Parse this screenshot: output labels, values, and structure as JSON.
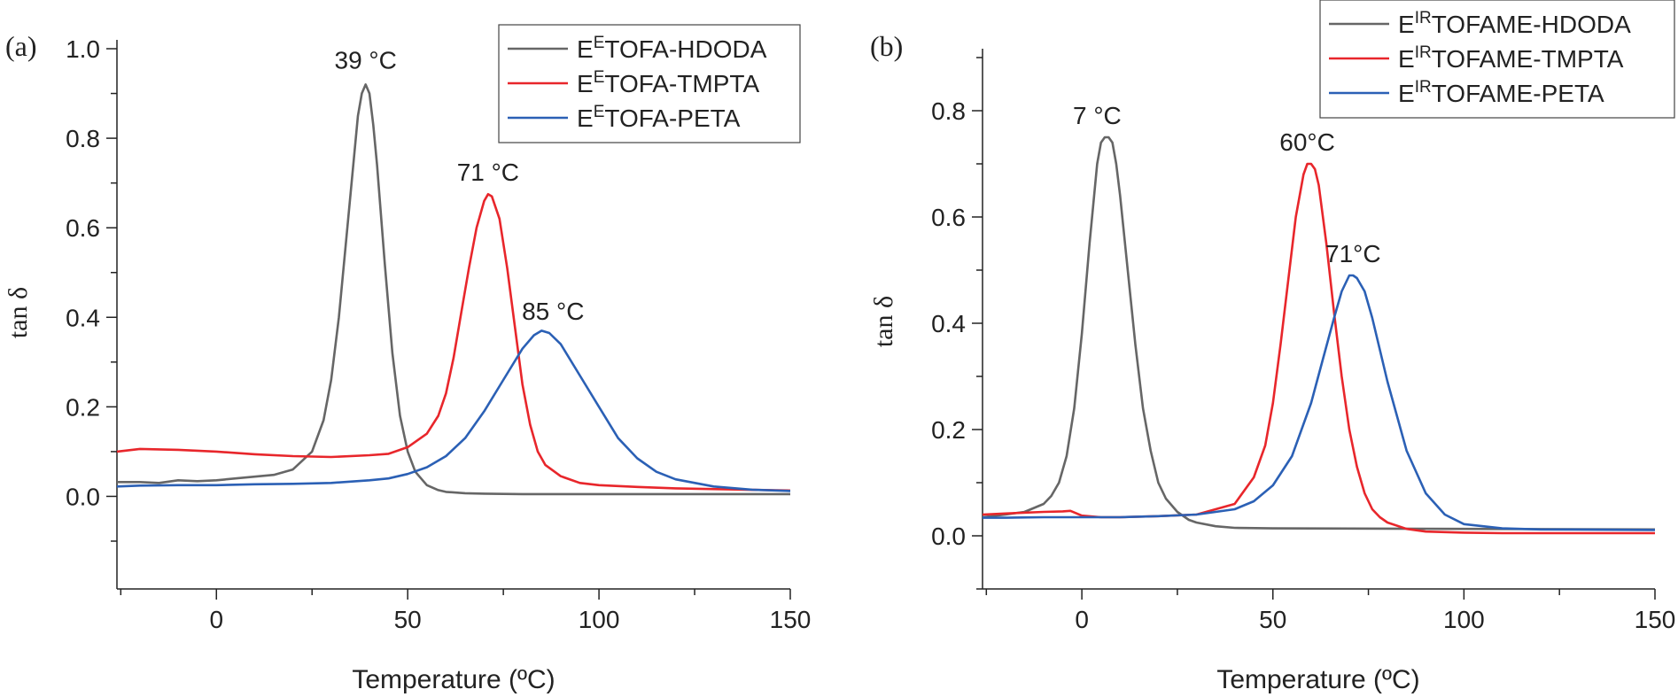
{
  "chart_data": [
    {
      "type": "line",
      "panel_label": "(a)",
      "xlabel": "Temperature (ºC)",
      "ylabel": "tan δ",
      "xlim": [
        -26,
        150
      ],
      "ylim": [
        -0.1,
        1.0
      ],
      "xticks": [
        0,
        50,
        100,
        150
      ],
      "yticks": [
        0.0,
        0.2,
        0.4,
        0.6,
        0.8,
        1.0
      ],
      "ytick_labels": [
        "0.0",
        "0.2",
        "0.4",
        "0.6",
        "0.8",
        "1.0"
      ],
      "colors": {
        "HDODA": "#666666",
        "TMPTA": "#e8262b",
        "PETA": "#2b60b5"
      },
      "legend": [
        {
          "sup": "E",
          "name": "TOFA-HDODA",
          "color": "#666666"
        },
        {
          "sup": "E",
          "name": "TOFA-TMPTA",
          "color": "#e8262b"
        },
        {
          "sup": "E",
          "name": "TOFA-PETA",
          "color": "#2b60b5"
        }
      ],
      "annotations": [
        {
          "text": "39 °C",
          "x": 39,
          "y": 0.955
        },
        {
          "text": "71 °C",
          "x": 71,
          "y": 0.705
        },
        {
          "text": "85 °C",
          "x": 88,
          "y": 0.395
        }
      ],
      "series": [
        {
          "name": "EETOFA-HDODA",
          "color": "#666666",
          "x": [
            -26,
            -20,
            -15,
            -10,
            -5,
            0,
            5,
            10,
            15,
            20,
            25,
            28,
            30,
            32,
            34,
            36,
            37,
            38,
            39,
            40,
            41,
            42,
            44,
            46,
            48,
            50,
            52,
            55,
            58,
            60,
            65,
            70,
            80,
            100,
            150
          ],
          "y": [
            0.032,
            0.032,
            0.03,
            0.036,
            0.034,
            0.036,
            0.04,
            0.044,
            0.048,
            0.06,
            0.1,
            0.17,
            0.26,
            0.4,
            0.58,
            0.76,
            0.85,
            0.9,
            0.92,
            0.9,
            0.83,
            0.74,
            0.52,
            0.32,
            0.18,
            0.1,
            0.055,
            0.025,
            0.014,
            0.01,
            0.007,
            0.006,
            0.005,
            0.005,
            0.005
          ]
        },
        {
          "name": "EETOFA-TMPTA",
          "color": "#e8262b",
          "x": [
            -26,
            -20,
            -10,
            0,
            10,
            20,
            30,
            40,
            45,
            50,
            55,
            58,
            60,
            62,
            64,
            66,
            68,
            70,
            71,
            72,
            74,
            76,
            78,
            80,
            82,
            84,
            86,
            90,
            95,
            100,
            110,
            120,
            150
          ],
          "y": [
            0.1,
            0.106,
            0.104,
            0.1,
            0.094,
            0.09,
            0.088,
            0.092,
            0.095,
            0.11,
            0.14,
            0.18,
            0.23,
            0.31,
            0.41,
            0.51,
            0.6,
            0.66,
            0.675,
            0.67,
            0.62,
            0.51,
            0.38,
            0.25,
            0.16,
            0.1,
            0.07,
            0.045,
            0.03,
            0.025,
            0.021,
            0.018,
            0.013
          ]
        },
        {
          "name": "EETOFA-PETA",
          "color": "#2b60b5",
          "x": [
            -26,
            -20,
            -10,
            0,
            10,
            20,
            30,
            40,
            45,
            50,
            55,
            60,
            65,
            70,
            75,
            80,
            83,
            85,
            87,
            90,
            95,
            100,
            105,
            110,
            115,
            120,
            130,
            140,
            150
          ],
          "y": [
            0.022,
            0.024,
            0.025,
            0.025,
            0.027,
            0.028,
            0.03,
            0.036,
            0.04,
            0.05,
            0.065,
            0.09,
            0.13,
            0.19,
            0.26,
            0.33,
            0.36,
            0.37,
            0.365,
            0.34,
            0.27,
            0.2,
            0.13,
            0.085,
            0.055,
            0.038,
            0.022,
            0.015,
            0.012
          ]
        }
      ]
    },
    {
      "type": "line",
      "panel_label": "(b)",
      "xlabel": "Temperature (ºC)",
      "ylabel": "tan δ",
      "xlim": [
        -26,
        150
      ],
      "ylim": [
        -0.1,
        0.9
      ],
      "xticks": [
        0,
        50,
        100,
        150
      ],
      "yticks": [
        0.0,
        0.2,
        0.4,
        0.6,
        0.8
      ],
      "ytick_labels": [
        "0.0",
        "0.2",
        "0.4",
        "0.6",
        "0.8"
      ],
      "colors": {
        "HDODA": "#666666",
        "TMPTA": "#e8262b",
        "PETA": "#2b60b5"
      },
      "legend": [
        {
          "sup": "IR",
          "name": "TOFAME-HDODA",
          "color": "#666666"
        },
        {
          "sup": "IR",
          "name": "TOFAME-TMPTA",
          "color": "#e8262b"
        },
        {
          "sup": "IR",
          "name": "TOFAME-PETA",
          "color": "#2b60b5"
        }
      ],
      "annotations": [
        {
          "text": "7 °C",
          "x": 4,
          "y": 0.775
        },
        {
          "text": "60°C",
          "x": 59,
          "y": 0.725
        },
        {
          "text": "71°C",
          "x": 71,
          "y": 0.515
        }
      ],
      "series": [
        {
          "name": "EIRTOFAME-HDODA",
          "color": "#666666",
          "x": [
            -26,
            -20,
            -15,
            -10,
            -8,
            -6,
            -4,
            -2,
            0,
            2,
            4,
            5,
            6,
            7,
            8,
            9,
            10,
            12,
            14,
            16,
            18,
            20,
            22,
            25,
            28,
            30,
            35,
            40,
            50,
            100,
            150
          ],
          "y": [
            0.035,
            0.04,
            0.045,
            0.06,
            0.075,
            0.1,
            0.15,
            0.24,
            0.38,
            0.55,
            0.7,
            0.74,
            0.75,
            0.75,
            0.74,
            0.7,
            0.64,
            0.5,
            0.36,
            0.24,
            0.16,
            0.1,
            0.07,
            0.045,
            0.03,
            0.025,
            0.018,
            0.015,
            0.014,
            0.013,
            0.012
          ]
        },
        {
          "name": "EIRTOFAME-TMPTA",
          "color": "#e8262b",
          "x": [
            -26,
            -20,
            -10,
            -5,
            -3,
            0,
            5,
            10,
            20,
            30,
            40,
            45,
            48,
            50,
            52,
            54,
            56,
            58,
            59,
            60,
            61,
            62,
            64,
            66,
            68,
            70,
            72,
            74,
            76,
            78,
            80,
            85,
            90,
            100,
            110,
            120,
            150
          ],
          "y": [
            0.04,
            0.042,
            0.045,
            0.046,
            0.047,
            0.038,
            0.035,
            0.035,
            0.037,
            0.04,
            0.06,
            0.11,
            0.17,
            0.25,
            0.36,
            0.48,
            0.6,
            0.68,
            0.7,
            0.7,
            0.69,
            0.66,
            0.55,
            0.42,
            0.3,
            0.2,
            0.13,
            0.08,
            0.05,
            0.035,
            0.025,
            0.013,
            0.008,
            0.006,
            0.005,
            0.005,
            0.005
          ]
        },
        {
          "name": "EIRTOFAME-PETA",
          "color": "#2b60b5",
          "x": [
            -26,
            -20,
            -10,
            0,
            10,
            20,
            30,
            40,
            45,
            50,
            55,
            60,
            63,
            66,
            68,
            70,
            71,
            72,
            74,
            76,
            78,
            80,
            85,
            90,
            95,
            100,
            110,
            120,
            150
          ],
          "y": [
            0.034,
            0.034,
            0.035,
            0.035,
            0.035,
            0.037,
            0.04,
            0.05,
            0.065,
            0.095,
            0.15,
            0.25,
            0.33,
            0.41,
            0.46,
            0.49,
            0.49,
            0.485,
            0.46,
            0.41,
            0.35,
            0.29,
            0.16,
            0.08,
            0.04,
            0.022,
            0.014,
            0.012,
            0.011
          ]
        }
      ]
    }
  ]
}
